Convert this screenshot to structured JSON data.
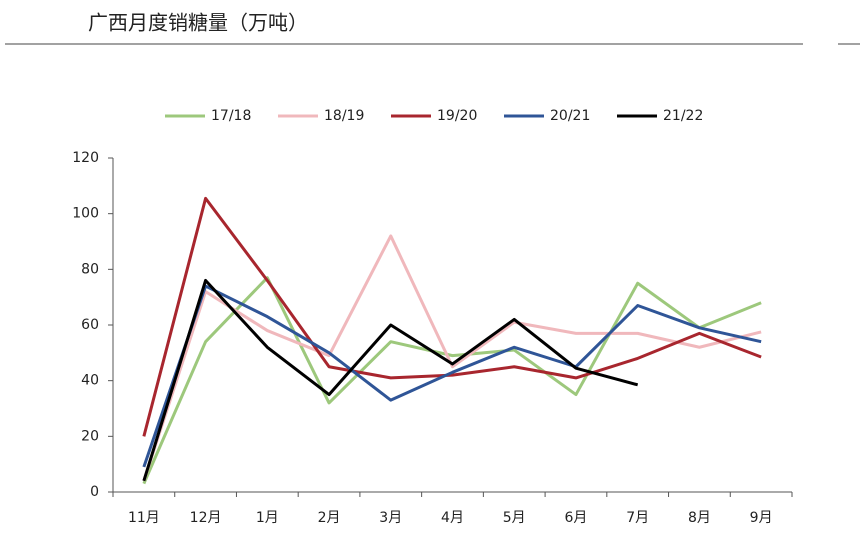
{
  "chart_data": {
    "type": "line",
    "title": "广西月度销糖量（万吨）",
    "categories": [
      "11月",
      "12月",
      "1月",
      "2月",
      "3月",
      "4月",
      "5月",
      "6月",
      "7月",
      "8月",
      "9月"
    ],
    "series": [
      {
        "name": "17/18",
        "color": "#9dc87c",
        "values": [
          3,
          54,
          77,
          32,
          54,
          49,
          51,
          35,
          75,
          59,
          68
        ]
      },
      {
        "name": "18/19",
        "color": "#f0b8bc",
        "values": [
          4,
          72,
          58,
          49,
          92,
          45,
          61,
          57,
          57,
          52,
          57.5
        ]
      },
      {
        "name": "19/20",
        "color": "#a8262e",
        "values": [
          20,
          105.5,
          76,
          45,
          41,
          42,
          45,
          41,
          48,
          57,
          48.5
        ]
      },
      {
        "name": "20/21",
        "color": "#2f5597",
        "values": [
          9,
          74,
          63,
          50,
          33,
          43,
          52,
          45,
          67,
          59,
          54
        ]
      },
      {
        "name": "21/22",
        "color": "#000000",
        "values": [
          4,
          76,
          52,
          35,
          60,
          46,
          62,
          44.5,
          38.5,
          null,
          null
        ]
      }
    ],
    "ylim": [
      0,
      120
    ],
    "yticks": [
      0,
      20,
      40,
      60,
      80,
      100,
      120
    ],
    "grid": false,
    "legend": "top"
  }
}
